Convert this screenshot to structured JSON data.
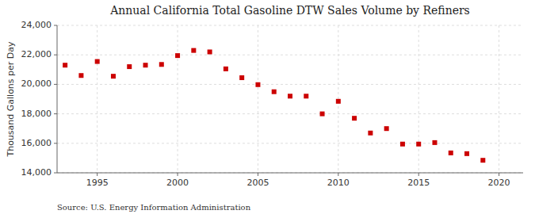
{
  "chart_data": {
    "type": "scatter",
    "title": "Annual California Total Gasoline DTW Sales Volume by Refiners",
    "y_label": "Thousand Gallons per Day",
    "annotations": [
      "Source: U.S. Energy Information Administration"
    ],
    "x": [
      1993,
      1994,
      1995,
      1996,
      1997,
      1998,
      1999,
      2000,
      2001,
      2002,
      2003,
      2004,
      2005,
      2006,
      2007,
      2008,
      2009,
      2010,
      2011,
      2012,
      2013,
      2014,
      2015,
      2016,
      2017,
      2018,
      2019
    ],
    "values": [
      21300,
      20600,
      21550,
      20550,
      21200,
      21300,
      21350,
      21950,
      22300,
      22200,
      21050,
      20450,
      19980,
      19500,
      19200,
      19200,
      18000,
      18850,
      17700,
      16700,
      17000,
      15950,
      15950,
      16050,
      15350,
      15300,
      14850
    ],
    "color": "#cc0000",
    "marker": "square",
    "grid": true,
    "xlim": [
      1992.5,
      2021.5
    ],
    "xticks": [
      1995,
      2000,
      2005,
      2010,
      2015,
      2020
    ],
    "ylim": [
      14000,
      24000
    ],
    "yticks": [
      {
        "value": 14000,
        "label": "14,000"
      },
      {
        "value": 16000,
        "label": "16,000"
      },
      {
        "value": 18000,
        "label": "18,000"
      },
      {
        "value": 20000,
        "label": "20,000"
      },
      {
        "value": 22000,
        "label": "22,000"
      },
      {
        "value": 24000,
        "label": "24,000"
      }
    ]
  }
}
